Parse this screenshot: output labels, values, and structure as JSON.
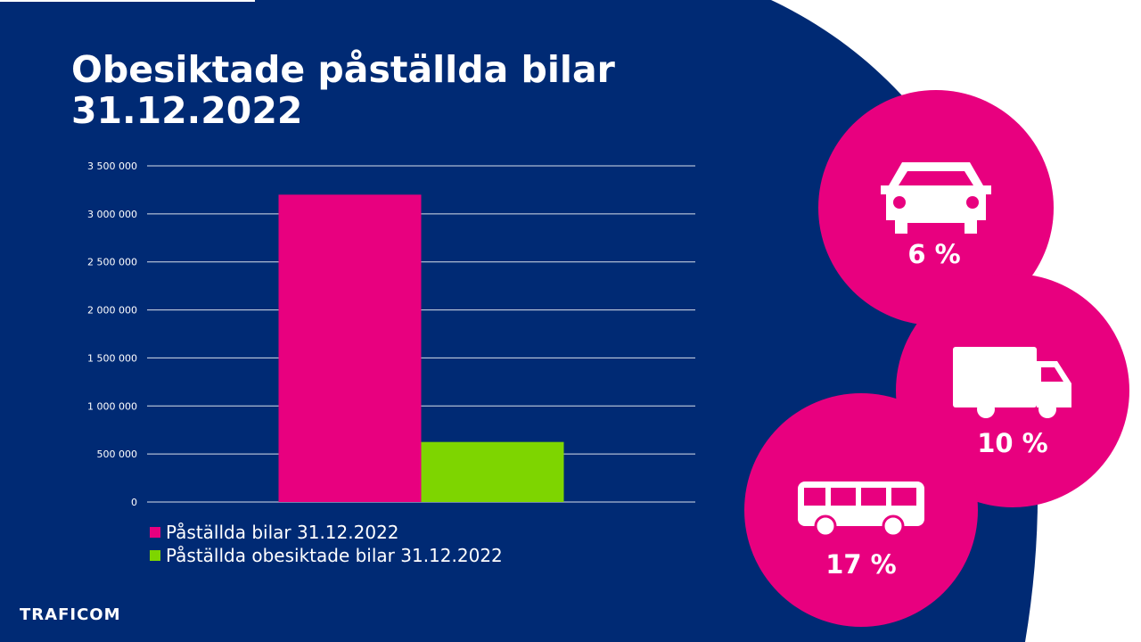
{
  "slide": {
    "title_line1": "Obesiktade påställda bilar",
    "title_line2": "31.12.2022",
    "logo_text": "TRAFICOM"
  },
  "colors": {
    "background_navy": "#002a74",
    "accent_pink": "#e8007f",
    "series_green": "#7ed500",
    "white": "#ffffff"
  },
  "badges": [
    {
      "icon": "car-icon",
      "label": "6 %"
    },
    {
      "icon": "truck-icon",
      "label": "10 %"
    },
    {
      "icon": "bus-icon",
      "label": "17 %"
    }
  ],
  "chart_data": {
    "type": "bar",
    "title": "",
    "xlabel": "",
    "ylabel": "",
    "categories": [
      ""
    ],
    "ylim": [
      0,
      3500000
    ],
    "yticks": [
      0,
      500000,
      1000000,
      1500000,
      2000000,
      2500000,
      3000000,
      3500000
    ],
    "ytick_labels": [
      "0",
      "500 000",
      "1 000 000",
      "1 500 000",
      "2 000 000",
      "2 500 000",
      "3 000 000",
      "3 500 000"
    ],
    "grid": true,
    "legend_position": "bottom-left",
    "series": [
      {
        "name": "Påställda bilar 31.12.2022",
        "values": [
          3200000
        ],
        "color": "#e8007f"
      },
      {
        "name": "Påställda obesiktade bilar 31.12.2022",
        "values": [
          625000
        ],
        "color": "#7ed500"
      }
    ]
  }
}
